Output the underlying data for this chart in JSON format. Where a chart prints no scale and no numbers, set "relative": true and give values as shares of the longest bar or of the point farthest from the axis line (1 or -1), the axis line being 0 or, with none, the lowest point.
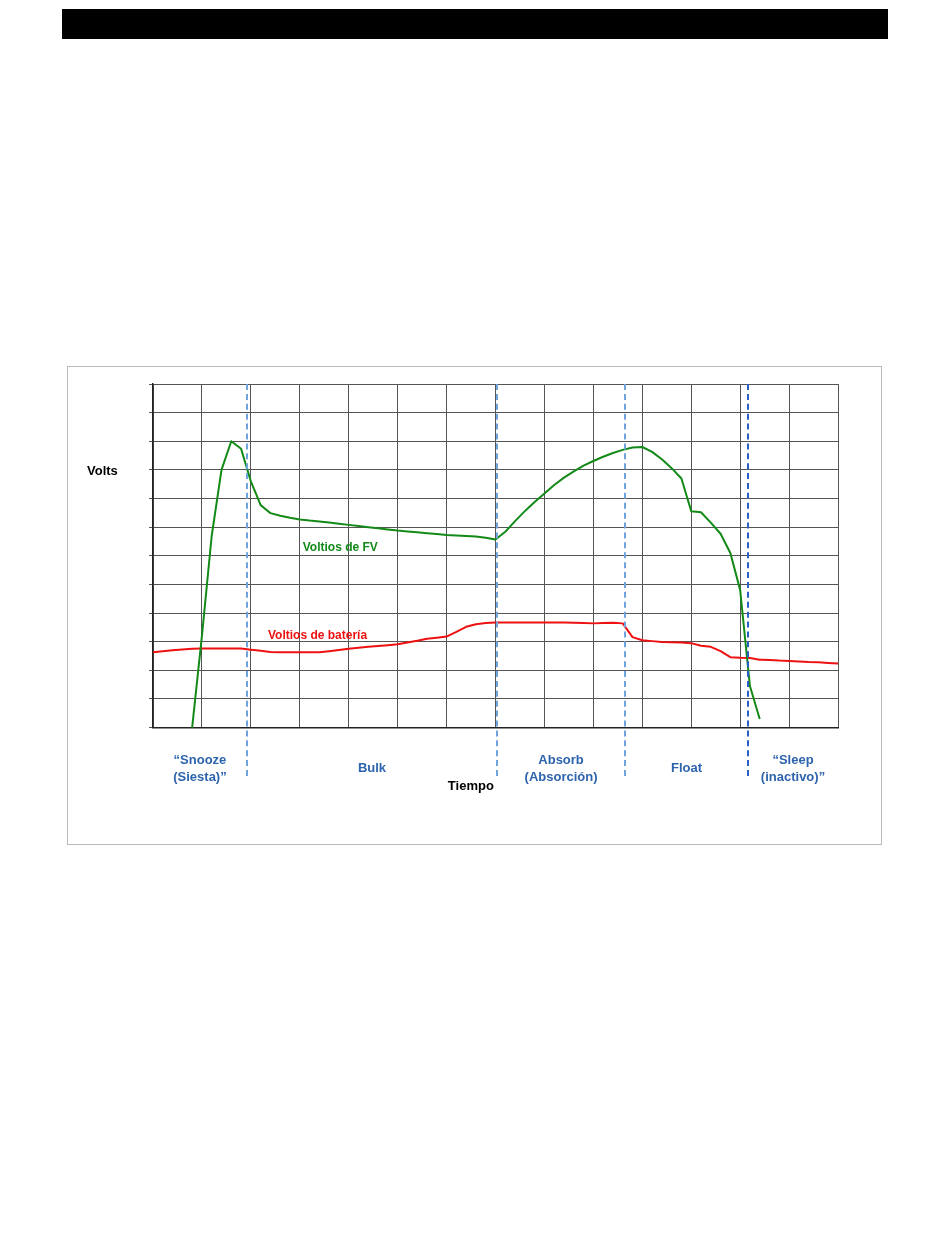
{
  "chart_data": {
    "type": "line",
    "relative": true,
    "xlabel": "Tiempo",
    "ylabel": "Volts",
    "categories": [
      null,
      null,
      null,
      null,
      null,
      null,
      null,
      null,
      null,
      null,
      null,
      null,
      null,
      null,
      null,
      null,
      null,
      null,
      null,
      null,
      null,
      null,
      null,
      null,
      null,
      null,
      null,
      null,
      null,
      null,
      null,
      null,
      null,
      null,
      null,
      null,
      null,
      null,
      null,
      null,
      null,
      null,
      null,
      null,
      null,
      null,
      null,
      null,
      null,
      null,
      null,
      null,
      null,
      null,
      null,
      null,
      null,
      null,
      null,
      null,
      null,
      null,
      null,
      null,
      null,
      null,
      null,
      null,
      null,
      null,
      null
    ],
    "grid": true,
    "legend": false,
    "marker": "none",
    "line_style": "solid",
    "series": [
      {
        "name": "Voltios de FV",
        "color": "#138a17",
        "values": [
          null,
          null,
          null,
          null,
          0,
          0.32,
          0.67,
          0.9,
          1.0,
          0.974,
          0.86,
          0.777,
          0.749,
          0.74,
          0.733,
          0.727,
          0.723,
          0.72,
          0.716,
          0.712,
          0.708,
          0.704,
          0.7,
          0.696,
          0.692,
          0.688,
          0.685,
          0.682,
          0.679,
          0.676,
          0.673,
          0.671,
          0.669,
          0.667,
          0.663,
          0.657,
          0.684,
          0.721,
          0.756,
          0.788,
          0.818,
          0.847,
          0.873,
          0.895,
          0.915,
          0.931,
          0.946,
          0.959,
          0.97,
          0.978,
          0.98,
          0.963,
          0.937,
          0.906,
          0.87,
          0.756,
          0.752,
          0.716,
          0.677,
          0.61,
          0.481,
          0.145,
          0.03,
          null,
          null,
          null,
          null,
          null,
          null,
          null,
          null
        ]
      },
      {
        "name": "Voltios de batería",
        "color": "#ee1111",
        "values": [
          0.263,
          0.267,
          0.27,
          0.273,
          0.275,
          0.276,
          0.276,
          0.276,
          0.276,
          0.276,
          0.272,
          0.268,
          0.264,
          0.263,
          0.263,
          0.263,
          0.263,
          0.263,
          0.267,
          0.271,
          0.275,
          0.279,
          0.282,
          0.285,
          0.288,
          0.291,
          0.297,
          0.303,
          0.31,
          0.314,
          0.318,
          0.334,
          0.352,
          0.361,
          0.365,
          0.367,
          0.367,
          0.367,
          0.367,
          0.367,
          0.367,
          0.367,
          0.367,
          0.366,
          0.365,
          0.364,
          0.365,
          0.366,
          0.364,
          0.316,
          0.305,
          0.302,
          0.299,
          0.298,
          0.297,
          0.295,
          0.286,
          0.282,
          0.267,
          0.246,
          0.244,
          0.243,
          0.237,
          0.236,
          0.234,
          0.233,
          0.231,
          0.229,
          0.228,
          0.226,
          0.224
        ]
      }
    ],
    "annotations": [
      "“Snooze (Siesta)”",
      "Bulk",
      "Absorb (Absorción)",
      "Float",
      "“Sleep (inactivo)”"
    ]
  }
}
